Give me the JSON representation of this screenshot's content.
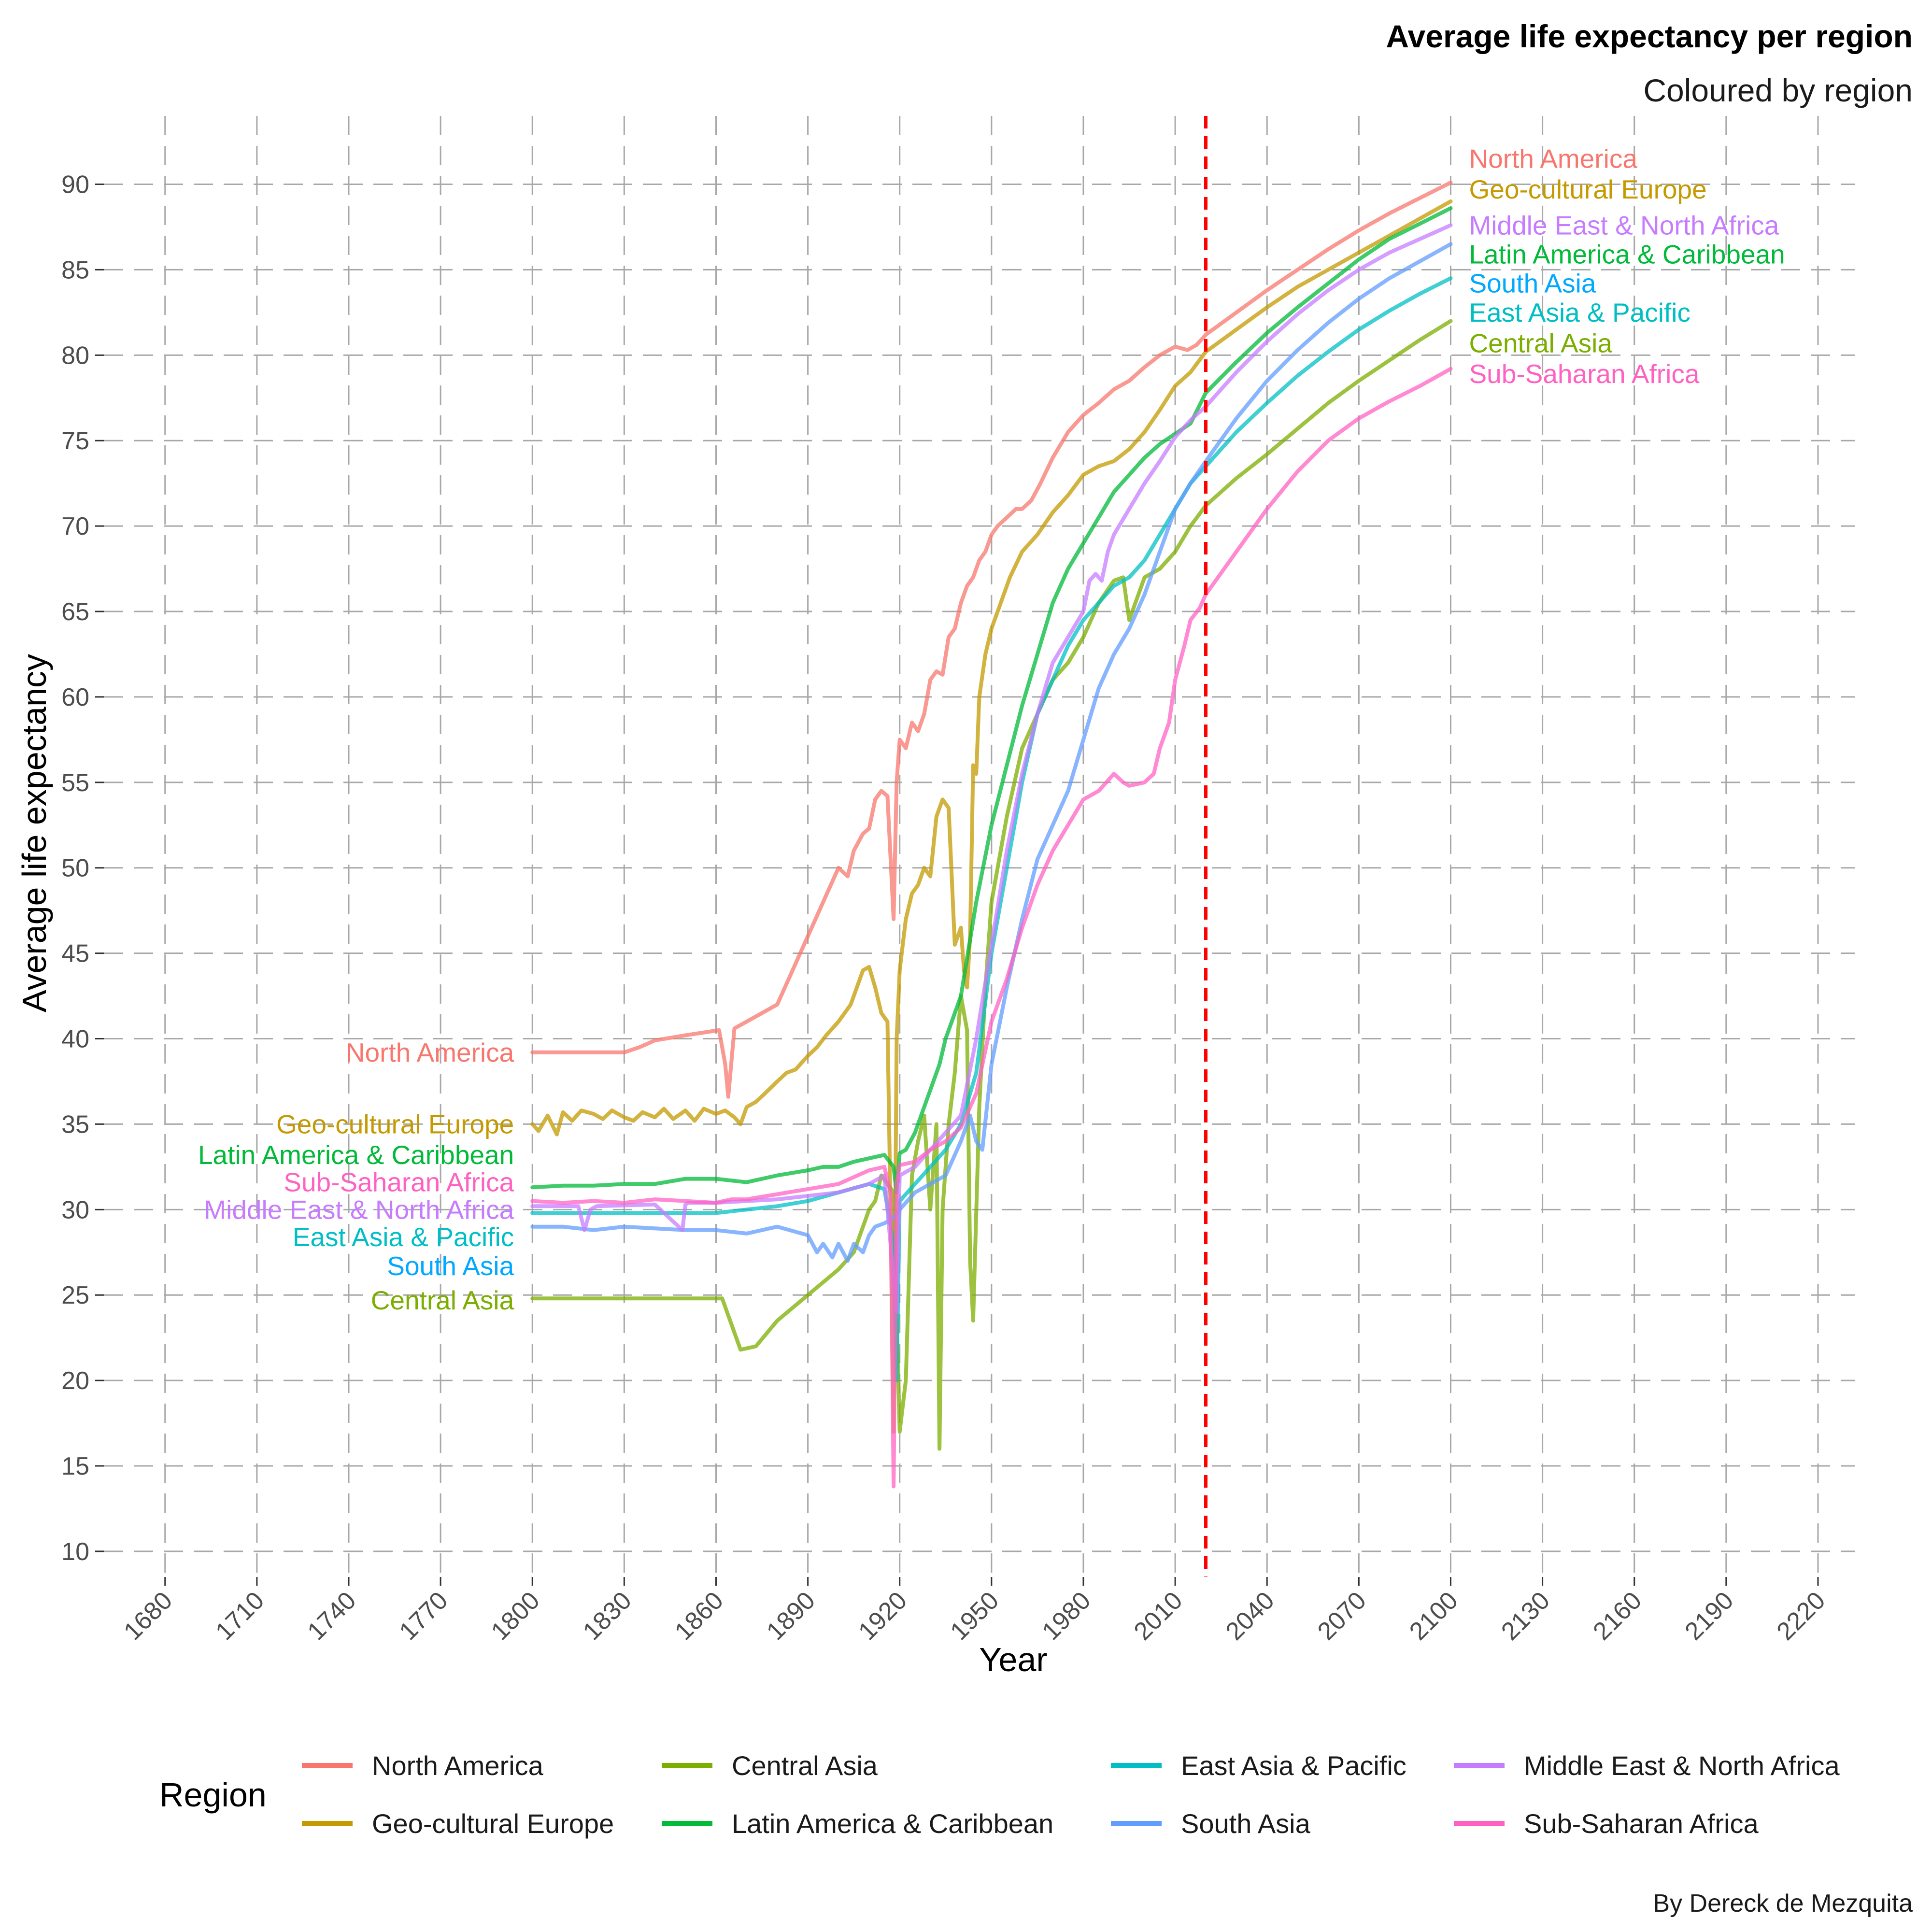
{
  "chart_data": {
    "type": "line",
    "title": "Average life expectancy per region",
    "subtitle": "Coloured by region",
    "xlabel": "Year",
    "ylabel": "Average life expectancy",
    "caption": "By Dereck de Mezquita",
    "xlim": [
      1660,
      2232
    ],
    "ylim": [
      8.5,
      94
    ],
    "x_ticks": [
      1680,
      1710,
      1740,
      1770,
      1800,
      1830,
      1860,
      1890,
      1920,
      1950,
      1980,
      2010,
      2040,
      2070,
      2100,
      2130,
      2160,
      2190,
      2220
    ],
    "y_ticks": [
      10,
      15,
      20,
      25,
      30,
      35,
      40,
      45,
      50,
      55,
      60,
      65,
      70,
      75,
      80,
      85,
      90
    ],
    "grid": true,
    "vline": {
      "x": 2020,
      "color": "#ff0000",
      "style": "dashed"
    },
    "legend": {
      "title": "Region",
      "position": "bottom"
    },
    "series": [
      {
        "name": "North America",
        "color": "#F8766D",
        "label_color": "#F8766D",
        "x": [
          1800,
          1810,
          1820,
          1830,
          1835,
          1840,
          1850,
          1861,
          1863,
          1864,
          1866,
          1870,
          1875,
          1880,
          1885,
          1890,
          1895,
          1900,
          1903,
          1905,
          1908,
          1910,
          1912,
          1914,
          1916,
          1918,
          1919,
          1920,
          1922,
          1924,
          1926,
          1928,
          1930,
          1932,
          1934,
          1936,
          1938,
          1940,
          1942,
          1944,
          1946,
          1948,
          1950,
          1952,
          1955,
          1958,
          1960,
          1963,
          1966,
          1970,
          1975,
          1980,
          1985,
          1990,
          1995,
          2000,
          2005,
          2010,
          2014,
          2017,
          2020,
          2030,
          2040,
          2050,
          2060,
          2070,
          2080,
          2090,
          2100
        ],
        "y": [
          39.2,
          39.2,
          39.2,
          39.2,
          39.5,
          39.9,
          40.2,
          40.5,
          38.5,
          36.6,
          40.6,
          41.0,
          41.5,
          42.0,
          44.0,
          46.0,
          48.0,
          50.0,
          49.5,
          51.0,
          52.0,
          52.3,
          54.0,
          54.5,
          54.2,
          47.0,
          55.0,
          57.5,
          57.0,
          58.5,
          58.0,
          59.0,
          61.0,
          61.5,
          61.3,
          63.5,
          64.0,
          65.5,
          66.5,
          67.0,
          68.0,
          68.5,
          69.5,
          70.0,
          70.5,
          71.0,
          71.0,
          71.5,
          72.5,
          74.0,
          75.5,
          76.5,
          77.2,
          78.0,
          78.5,
          79.3,
          80.0,
          80.5,
          80.3,
          80.6,
          81.2,
          82.5,
          83.8,
          85.0,
          86.2,
          87.3,
          88.3,
          89.2,
          90.1
        ]
      },
      {
        "name": "Geo-cultural Europe",
        "color": "#C49A00",
        "label_color": "#C49A00",
        "x": [
          1800,
          1802,
          1805,
          1808,
          1810,
          1813,
          1816,
          1820,
          1823,
          1826,
          1830,
          1833,
          1836,
          1840,
          1843,
          1846,
          1850,
          1853,
          1856,
          1860,
          1863,
          1866,
          1868,
          1870,
          1873,
          1876,
          1880,
          1883,
          1886,
          1890,
          1893,
          1896,
          1900,
          1902,
          1904,
          1906,
          1908,
          1910,
          1912,
          1914,
          1916,
          1917,
          1918,
          1919,
          1920,
          1922,
          1924,
          1926,
          1928,
          1930,
          1932,
          1934,
          1936,
          1938,
          1940,
          1941,
          1942,
          1943,
          1944,
          1945,
          1946,
          1948,
          1950,
          1953,
          1956,
          1960,
          1965,
          1970,
          1975,
          1980,
          1985,
          1990,
          1995,
          2000,
          2005,
          2010,
          2015,
          2020,
          2030,
          2040,
          2050,
          2060,
          2070,
          2080,
          2090,
          2100
        ],
        "y": [
          35.0,
          34.6,
          35.5,
          34.4,
          35.7,
          35.2,
          35.8,
          35.6,
          35.3,
          35.8,
          35.4,
          35.2,
          35.7,
          35.4,
          35.9,
          35.3,
          35.8,
          35.2,
          35.9,
          35.6,
          35.8,
          35.4,
          35.0,
          36.0,
          36.3,
          36.8,
          37.5,
          38.0,
          38.2,
          39.0,
          39.5,
          40.2,
          41.0,
          41.5,
          42.0,
          43.0,
          44.0,
          44.2,
          43.0,
          41.5,
          41.0,
          30.0,
          17.0,
          40.0,
          44.0,
          47.0,
          48.5,
          49.0,
          50.0,
          49.5,
          53.0,
          54.0,
          53.5,
          45.5,
          46.5,
          44.0,
          43.0,
          46.0,
          56.0,
          55.5,
          60.0,
          62.5,
          64.0,
          65.5,
          67.0,
          68.5,
          69.5,
          70.8,
          71.8,
          73.0,
          73.5,
          73.8,
          74.5,
          75.5,
          76.8,
          78.2,
          79.0,
          80.2,
          81.5,
          82.8,
          84.0,
          85.0,
          86.0,
          87.0,
          88.0,
          89.0
        ]
      },
      {
        "name": "Central Asia",
        "color": "#7CAE00",
        "label_color": "#7CAE00",
        "x": [
          1800,
          1820,
          1840,
          1862,
          1868,
          1873,
          1880,
          1890,
          1900,
          1905,
          1910,
          1912,
          1914,
          1916,
          1918,
          1919,
          1920,
          1922,
          1924,
          1926,
          1928,
          1930,
          1932,
          1933,
          1934,
          1936,
          1938,
          1940,
          1942,
          1943,
          1944,
          1946,
          1948,
          1950,
          1955,
          1960,
          1965,
          1970,
          1975,
          1980,
          1985,
          1990,
          1993,
          1995,
          2000,
          2005,
          2010,
          2015,
          2020,
          2030,
          2040,
          2050,
          2060,
          2070,
          2080,
          2090,
          2100
        ],
        "y": [
          24.8,
          24.8,
          24.8,
          24.8,
          21.8,
          22.0,
          23.5,
          25.0,
          26.5,
          27.5,
          30.0,
          30.5,
          32.0,
          31.5,
          31.0,
          24.0,
          17.0,
          20.0,
          32.0,
          34.0,
          35.5,
          30.0,
          35.0,
          16.0,
          30.0,
          35.0,
          38.0,
          42.5,
          40.5,
          27.0,
          23.5,
          36.0,
          43.0,
          48.0,
          53.0,
          57.0,
          59.0,
          61.0,
          62.0,
          63.5,
          65.5,
          66.8,
          67.0,
          64.5,
          67.0,
          67.5,
          68.5,
          70.0,
          71.2,
          72.8,
          74.2,
          75.7,
          77.2,
          78.5,
          79.7,
          80.9,
          82.0
        ]
      },
      {
        "name": "Latin America & Caribbean",
        "color": "#00BA38",
        "label_color": "#00BA38",
        "x": [
          1800,
          1810,
          1820,
          1830,
          1840,
          1850,
          1860,
          1870,
          1880,
          1890,
          1895,
          1900,
          1905,
          1910,
          1915,
          1918,
          1919,
          1920,
          1922,
          1925,
          1928,
          1930,
          1933,
          1935,
          1938,
          1940,
          1945,
          1950,
          1955,
          1960,
          1965,
          1970,
          1975,
          1980,
          1985,
          1990,
          1995,
          2000,
          2005,
          2010,
          2015,
          2020,
          2030,
          2040,
          2050,
          2060,
          2070,
          2080,
          2090,
          2100
        ],
        "y": [
          31.3,
          31.4,
          31.4,
          31.5,
          31.5,
          31.8,
          31.8,
          31.6,
          32.0,
          32.3,
          32.5,
          32.5,
          32.8,
          33.0,
          33.2,
          32.5,
          31.0,
          33.3,
          33.5,
          34.5,
          36.0,
          37.0,
          38.5,
          40.0,
          41.5,
          42.5,
          48.0,
          52.5,
          56.0,
          59.5,
          62.5,
          65.5,
          67.5,
          69.0,
          70.5,
          72.0,
          73.0,
          74.0,
          74.8,
          75.4,
          76.0,
          77.8,
          79.6,
          81.3,
          82.8,
          84.2,
          85.6,
          86.8,
          87.7,
          88.6
        ]
      },
      {
        "name": "East Asia & Pacific",
        "color": "#00BFC4",
        "label_color": "#00BFC4",
        "x": [
          1800,
          1820,
          1840,
          1860,
          1870,
          1880,
          1890,
          1900,
          1910,
          1915,
          1918,
          1919,
          1920,
          1925,
          1930,
          1935,
          1940,
          1945,
          1950,
          1955,
          1960,
          1965,
          1970,
          1975,
          1980,
          1985,
          1990,
          1995,
          2000,
          2005,
          2010,
          2015,
          2020,
          2030,
          2040,
          2050,
          2060,
          2070,
          2080,
          2090,
          2100
        ],
        "y": [
          29.8,
          29.8,
          29.8,
          29.8,
          30.0,
          30.2,
          30.5,
          31.0,
          31.5,
          31.2,
          28.0,
          20.0,
          30.5,
          31.5,
          32.5,
          33.5,
          35.0,
          38.0,
          45.0,
          50.0,
          55.0,
          59.0,
          61.0,
          63.0,
          64.5,
          65.5,
          66.5,
          67.0,
          68.0,
          69.5,
          71.0,
          72.5,
          73.5,
          75.5,
          77.2,
          78.8,
          80.2,
          81.5,
          82.6,
          83.6,
          84.5
        ]
      },
      {
        "name": "South Asia",
        "color": "#619CFF",
        "label_color": "#00A9FF",
        "x": [
          1800,
          1810,
          1820,
          1830,
          1840,
          1850,
          1860,
          1870,
          1880,
          1890,
          1893,
          1895,
          1898,
          1900,
          1903,
          1905,
          1908,
          1910,
          1912,
          1915,
          1918,
          1920,
          1925,
          1930,
          1935,
          1940,
          1943,
          1945,
          1947,
          1950,
          1955,
          1960,
          1965,
          1970,
          1975,
          1980,
          1985,
          1990,
          1995,
          2000,
          2005,
          2010,
          2015,
          2020,
          2030,
          2040,
          2050,
          2060,
          2070,
          2080,
          2090,
          2100
        ],
        "y": [
          29.0,
          29.0,
          28.8,
          29.0,
          28.9,
          28.8,
          28.8,
          28.6,
          29.0,
          28.5,
          27.5,
          28.0,
          27.2,
          28.0,
          27.0,
          28.0,
          27.5,
          28.5,
          29.0,
          29.2,
          29.5,
          30.0,
          31.0,
          31.5,
          32.0,
          34.0,
          35.5,
          34.0,
          33.5,
          38.5,
          43.0,
          47.0,
          50.5,
          52.5,
          54.5,
          57.5,
          60.5,
          62.5,
          64.0,
          66.0,
          68.5,
          71.0,
          72.5,
          73.8,
          76.3,
          78.5,
          80.3,
          81.9,
          83.3,
          84.5,
          85.5,
          86.5
        ]
      },
      {
        "name": "Middle East & North Africa",
        "color": "#C77CFF",
        "label_color": "#C77CFF",
        "x": [
          1800,
          1815,
          1817,
          1819,
          1821,
          1840,
          1849,
          1850,
          1851,
          1860,
          1870,
          1880,
          1890,
          1900,
          1910,
          1915,
          1918,
          1919,
          1920,
          1925,
          1930,
          1935,
          1940,
          1945,
          1950,
          1955,
          1960,
          1965,
          1970,
          1975,
          1980,
          1982,
          1984,
          1986,
          1988,
          1990,
          1995,
          2000,
          2005,
          2010,
          2015,
          2020,
          2030,
          2040,
          2050,
          2060,
          2070,
          2080,
          2090,
          2100
        ],
        "y": [
          30.2,
          30.2,
          28.8,
          30.0,
          30.2,
          30.3,
          28.8,
          30.3,
          30.4,
          30.4,
          30.5,
          30.6,
          30.8,
          31.0,
          31.5,
          32.0,
          26.0,
          24.0,
          32.0,
          32.5,
          33.5,
          34.5,
          35.5,
          40.0,
          45.5,
          51.0,
          55.5,
          59.0,
          62.0,
          63.5,
          65.0,
          66.8,
          67.2,
          66.8,
          68.5,
          69.5,
          71.0,
          72.5,
          73.8,
          75.2,
          76.2,
          77.0,
          79.0,
          80.8,
          82.4,
          83.8,
          85.0,
          86.0,
          86.8,
          87.6
        ]
      },
      {
        "name": "Sub-Saharan Africa",
        "color": "#FF61C3",
        "label_color": "#FF61C3",
        "x": [
          1800,
          1810,
          1820,
          1830,
          1840,
          1850,
          1860,
          1865,
          1870,
          1880,
          1890,
          1900,
          1905,
          1910,
          1915,
          1917,
          1918,
          1919,
          1920,
          1925,
          1930,
          1935,
          1940,
          1945,
          1950,
          1955,
          1960,
          1965,
          1970,
          1975,
          1980,
          1985,
          1990,
          1993,
          1995,
          2000,
          2003,
          2005,
          2008,
          2010,
          2013,
          2015,
          2018,
          2020,
          2030,
          2040,
          2050,
          2060,
          2070,
          2080,
          2090,
          2100
        ],
        "y": [
          30.5,
          30.4,
          30.5,
          30.4,
          30.6,
          30.5,
          30.4,
          30.6,
          30.6,
          30.9,
          31.2,
          31.5,
          31.9,
          32.3,
          32.5,
          31.0,
          13.8,
          31.5,
          32.6,
          32.8,
          33.5,
          34.0,
          34.8,
          36.8,
          41.0,
          43.5,
          46.5,
          49.0,
          51.0,
          52.5,
          54.0,
          54.5,
          55.5,
          55.0,
          54.8,
          55.0,
          55.5,
          57.0,
          58.5,
          61.0,
          63.0,
          64.5,
          65.2,
          66.0,
          68.5,
          71.0,
          73.2,
          75.0,
          76.3,
          77.3,
          78.2,
          79.2
        ]
      }
    ],
    "start_labels": [
      {
        "name": "North America",
        "x": 1800,
        "y": 39.2
      },
      {
        "name": "Geo-cultural Europe",
        "x": 1800,
        "y": 35.0
      },
      {
        "name": "Latin America & Caribbean",
        "x": 1800,
        "y": 33.2
      },
      {
        "name": "Sub-Saharan Africa",
        "x": 1800,
        "y": 31.6
      },
      {
        "name": "Middle East & North Africa",
        "x": 1800,
        "y": 30.0
      },
      {
        "name": "East Asia & Pacific",
        "x": 1800,
        "y": 28.4
      },
      {
        "name": "South Asia",
        "x": 1800,
        "y": 26.7
      },
      {
        "name": "Central Asia",
        "x": 1800,
        "y": 24.7
      }
    ],
    "end_labels": [
      {
        "name": "North America",
        "x": 2100,
        "y": 91.5
      },
      {
        "name": "Geo-cultural Europe",
        "x": 2100,
        "y": 89.7
      },
      {
        "name": "Middle East & North Africa",
        "x": 2100,
        "y": 87.6
      },
      {
        "name": "Latin America & Caribbean",
        "x": 2100,
        "y": 85.9
      },
      {
        "name": "South Asia",
        "x": 2100,
        "y": 84.2
      },
      {
        "name": "East Asia & Pacific",
        "x": 2100,
        "y": 82.5
      },
      {
        "name": "Central Asia",
        "x": 2100,
        "y": 80.7
      },
      {
        "name": "Sub-Saharan Africa",
        "x": 2100,
        "y": 78.9
      }
    ],
    "legend_layout": [
      [
        "North America",
        "Central Asia",
        "East Asia & Pacific",
        "Middle East & North Africa"
      ],
      [
        "Geo-cultural Europe",
        "Latin America & Caribbean",
        "South Asia",
        "Sub-Saharan Africa"
      ]
    ]
  }
}
